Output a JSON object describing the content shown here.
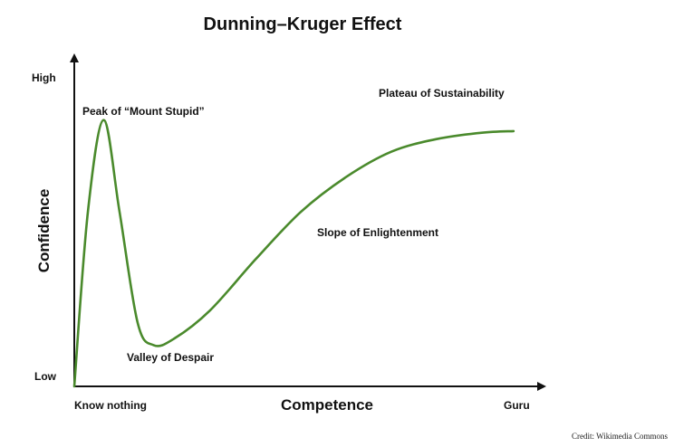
{
  "chart_data": {
    "type": "line",
    "title": "Dunning–Kruger Effect",
    "xlabel": "Competence",
    "ylabel": "Confidence",
    "x_ticks": [
      "Know nothing",
      "Guru"
    ],
    "y_ticks": [
      "Low",
      "High"
    ],
    "xlim": [
      0,
      100
    ],
    "ylim": [
      0,
      100
    ],
    "grid": false,
    "legend": "none",
    "series": [
      {
        "color": "#4a8a2c",
        "points": [
          [
            0,
            0
          ],
          [
            3,
            55
          ],
          [
            6.5,
            84
          ],
          [
            10,
            55
          ],
          [
            14,
            20
          ],
          [
            17.5,
            13
          ],
          [
            22,
            15
          ],
          [
            30,
            24
          ],
          [
            40,
            40
          ],
          [
            50,
            55
          ],
          [
            60,
            66
          ],
          [
            70,
            74
          ],
          [
            80,
            78
          ],
          [
            90,
            80
          ],
          [
            97,
            80.5
          ]
        ]
      }
    ],
    "annotations": [
      "Peak of “Mount Stupid”",
      "Valley of Despair",
      "Slope of Enlightenment",
      "Plateau of Sustainability"
    ]
  },
  "credit": "Credit: Wikimedia Commons"
}
